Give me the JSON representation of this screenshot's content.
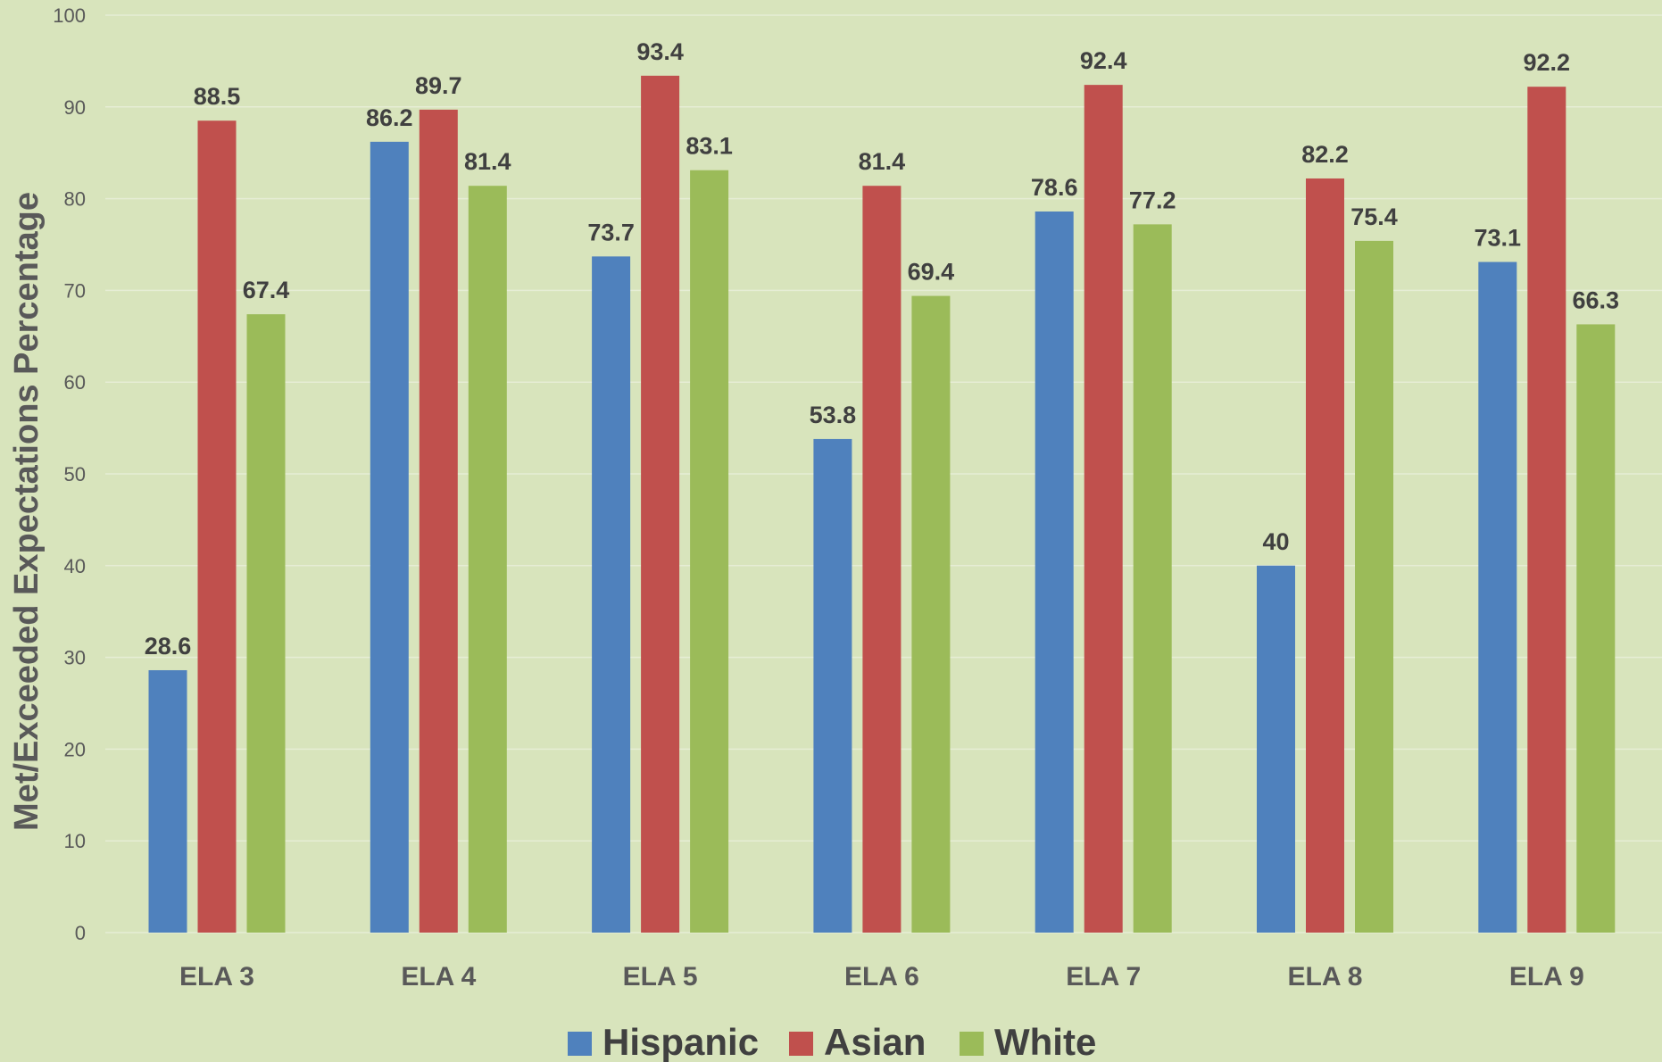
{
  "chart_data": {
    "type": "bar",
    "title": "",
    "xlabel": "",
    "ylabel": "Met/Exceeded Expectations Percentage",
    "ylim": [
      0,
      100
    ],
    "y_ticks": [
      0,
      10,
      20,
      30,
      40,
      50,
      60,
      70,
      80,
      90,
      100
    ],
    "grid": true,
    "legend_position": "bottom",
    "categories": [
      "ELA 3",
      "ELA 4",
      "ELA 5",
      "ELA 6",
      "ELA 7",
      "ELA 8",
      "ELA 9"
    ],
    "series": [
      {
        "name": "Hispanic",
        "color": "#4f81bd",
        "values": [
          28.6,
          86.2,
          73.7,
          53.8,
          78.6,
          40,
          73.1
        ]
      },
      {
        "name": "Asian",
        "color": "#c0504d",
        "values": [
          88.5,
          89.7,
          93.4,
          81.4,
          92.4,
          82.2,
          92.2
        ]
      },
      {
        "name": "White",
        "color": "#9bbb59",
        "values": [
          67.4,
          81.4,
          83.1,
          69.4,
          77.2,
          75.4,
          66.3
        ]
      }
    ]
  }
}
